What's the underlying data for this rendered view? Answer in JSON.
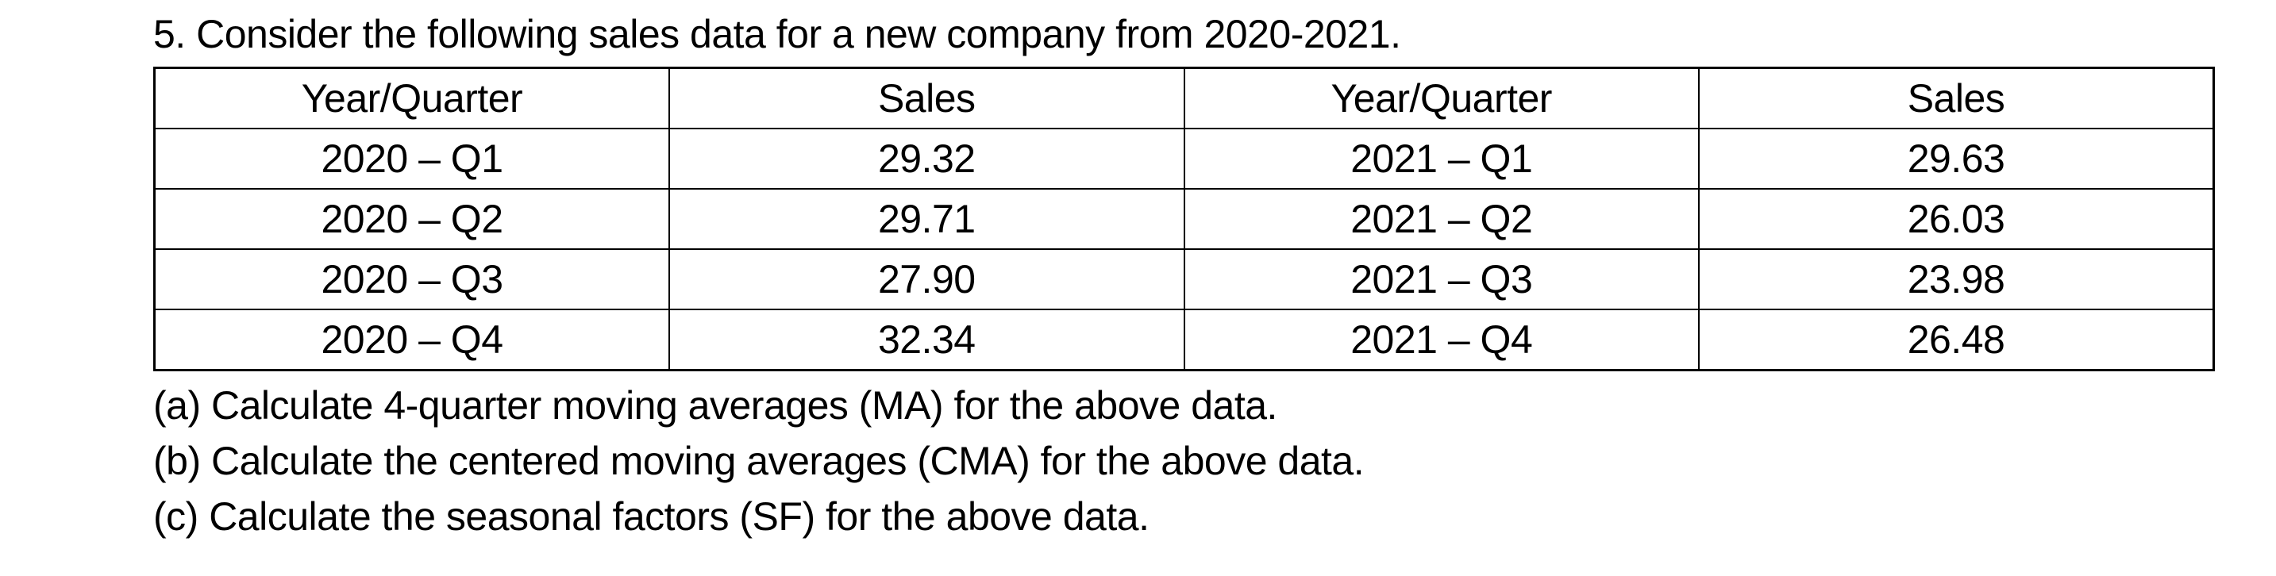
{
  "title": "5. Consider the following sales data for a new company from 2020-2021.",
  "table": {
    "headers": [
      "Year/Quarter",
      "Sales",
      "Year/Quarter",
      "Sales"
    ],
    "rows": [
      [
        "2020 – Q1",
        "29.32",
        "2021 – Q1",
        "29.63"
      ],
      [
        "2020 – Q2",
        "29.71",
        "2021 – Q2",
        "26.03"
      ],
      [
        "2020 – Q3",
        "27.90",
        "2021 – Q3",
        "23.98"
      ],
      [
        "2020 – Q4",
        "32.34",
        "2021 – Q4",
        "26.48"
      ]
    ]
  },
  "questions": [
    "(a) Calculate 4-quarter moving averages (MA) for the above data.",
    "(b) Calculate the centered moving averages (CMA) for the above data.",
    "(c) Calculate the seasonal factors (SF) for the above data."
  ],
  "colors": {
    "text": "#000000",
    "background": "#ffffff",
    "table_border": "#000000"
  }
}
